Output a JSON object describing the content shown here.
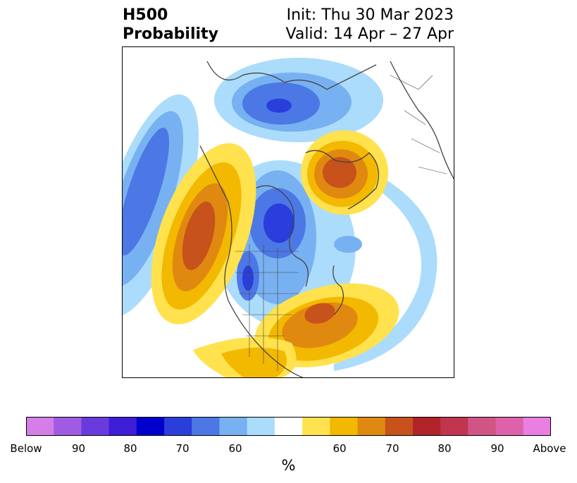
{
  "header": {
    "field": "H500",
    "product": "Probability",
    "init": "Init: Thu 30 Mar 2023",
    "valid": "Valid: 14 Apr – 27 Apr"
  },
  "colorbar": {
    "unit": "%",
    "colors": [
      "#d57de9",
      "#a05be3",
      "#6a3bdc",
      "#3d1dd6",
      "#0000cd",
      "#2a3edb",
      "#4c78e6",
      "#78b1f1",
      "#acdcfb",
      "#ffffff",
      "#ffe24d",
      "#f3b800",
      "#e08910",
      "#c7521c",
      "#b1242a",
      "#c2354f",
      "#d05585",
      "#dd62aa",
      "#e97ee3"
    ],
    "labels": [
      "Below",
      "90",
      "80",
      "70",
      "60",
      "60",
      "70",
      "80",
      "90",
      "Above"
    ]
  },
  "map_legend": {
    "below_colors": [
      "#acdcfb",
      "#78b1f1",
      "#4c78e6",
      "#2a3edb"
    ],
    "above_colors": [
      "#ffe24d",
      "#f3b800",
      "#e08910",
      "#c7521c"
    ]
  }
}
